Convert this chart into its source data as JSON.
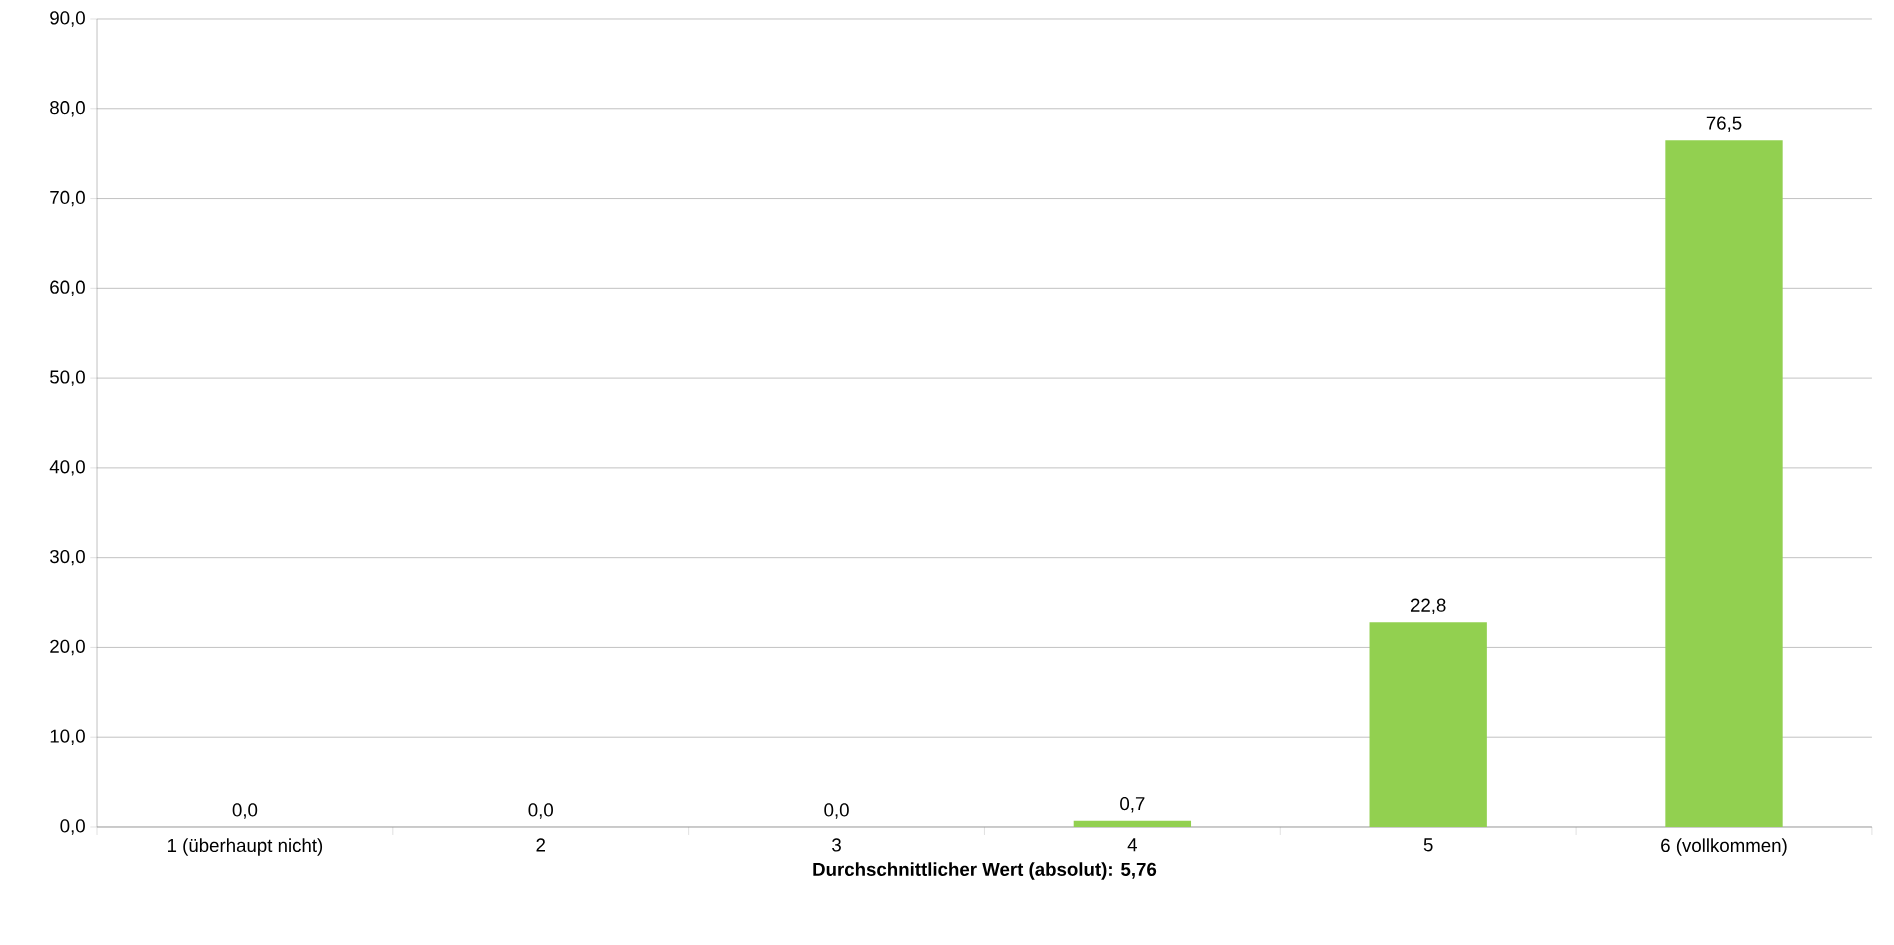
{
  "chart_data": {
    "type": "bar",
    "xlabel": "**Durchschnittlicher Wert (absolut): 5,76**",
    "categories": [
      "1 (überhaupt nicht)",
      "2",
      "3",
      "4",
      "5",
      "6 (vollkommen)"
    ],
    "values": [
      0.0,
      0.0,
      0.0,
      0.7,
      22.8,
      76.5
    ],
    "value_labels": [
      "0,0",
      "0,0",
      "0,0",
      "0,7",
      "22,8",
      "76,5"
    ],
    "color": "#92d050",
    "ylim": [
      0,
      90
    ],
    "yticks": [
      {
        "value": 0,
        "label": "0,0"
      },
      {
        "value": 10,
        "label": "10,0"
      },
      {
        "value": 20,
        "label": "20,0"
      },
      {
        "value": 30,
        "label": "30,0"
      },
      {
        "value": 40,
        "label": "40,0"
      },
      {
        "value": 50,
        "label": "50,0"
      },
      {
        "value": 60,
        "label": "60,0"
      },
      {
        "value": 70,
        "label": "70,0"
      },
      {
        "value": 80,
        "label": "80,0"
      },
      {
        "value": 90,
        "label": "90,0"
      }
    ],
    "grid": "y"
  }
}
